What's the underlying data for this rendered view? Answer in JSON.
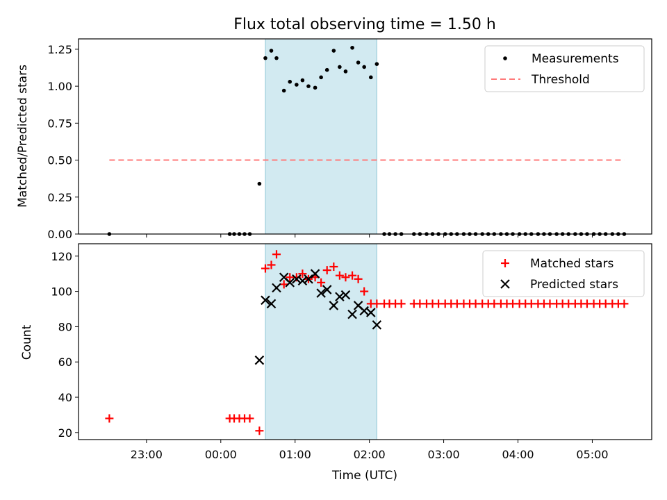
{
  "chart_data": [
    {
      "type": "scatter",
      "title": "Flux total observing time = 1.50 h",
      "xlabel": "",
      "ylabel": "Matched/Predicted stars",
      "ylim": [
        0,
        1.32
      ],
      "xlim": [
        -1.915,
        5.8
      ],
      "x_unit": "hours relative to 00:00 UTC",
      "yticks": [
        0,
        0.25,
        0.5,
        0.75,
        1.0,
        1.25
      ],
      "ytick_labels": [
        "0.00",
        "0.25",
        "0.50",
        "0.75",
        "1.00",
        "1.25"
      ],
      "shaded_span": [
        0.6,
        2.1
      ],
      "legend_position": "upper right",
      "series": [
        {
          "name": "Measurements",
          "style": "dot",
          "color": "#000000",
          "x": [
            -1.5,
            0.12,
            0.18,
            0.25,
            0.32,
            0.39,
            0.52,
            0.6,
            0.68,
            0.75,
            0.85,
            0.93,
            1.02,
            1.1,
            1.18,
            1.27,
            1.35,
            1.43,
            1.52,
            1.6,
            1.68,
            1.77,
            1.85,
            1.93,
            2.02,
            2.1,
            2.2,
            2.27,
            2.35,
            2.43,
            2.6,
            2.68,
            2.77,
            2.85,
            2.93,
            3.02,
            3.1,
            3.18,
            3.27,
            3.35,
            3.43,
            3.52,
            3.6,
            3.68,
            3.77,
            3.85,
            3.93,
            4.02,
            4.1,
            4.18,
            4.27,
            4.35,
            4.43,
            4.52,
            4.6,
            4.68,
            4.77,
            4.85,
            4.93,
            5.02,
            5.1,
            5.18,
            5.27,
            5.35,
            5.43
          ],
          "y": [
            0,
            0,
            0,
            0,
            0,
            0,
            0.34,
            1.19,
            1.24,
            1.19,
            0.97,
            1.03,
            1.01,
            1.04,
            1.0,
            0.99,
            1.06,
            1.11,
            1.24,
            1.13,
            1.1,
            1.26,
            1.16,
            1.13,
            1.06,
            1.15,
            0,
            0,
            0,
            0,
            0,
            0,
            0,
            0,
            0,
            0,
            0,
            0,
            0,
            0,
            0,
            0,
            0,
            0,
            0,
            0,
            0,
            0,
            0,
            0,
            0,
            0,
            0,
            0,
            0,
            0,
            0,
            0,
            0,
            0,
            0,
            0,
            0,
            0,
            0
          ]
        },
        {
          "name": "Threshold",
          "style": "dashed-line",
          "color": "#ff7a7a",
          "x": [
            -1.5,
            5.43
          ],
          "y": [
            0.5,
            0.5
          ]
        }
      ]
    },
    {
      "type": "scatter",
      "title": "",
      "xlabel": "Time (UTC)",
      "ylabel": "Count",
      "ylim": [
        16,
        127
      ],
      "xlim": [
        -1.915,
        5.8
      ],
      "yticks": [
        20,
        40,
        60,
        80,
        100,
        120
      ],
      "ytick_labels": [
        "20",
        "40",
        "60",
        "80",
        "100",
        "120"
      ],
      "xticks": [
        -1,
        0,
        1,
        2,
        3,
        4,
        5
      ],
      "xtick_labels": [
        "23:00",
        "00:00",
        "01:00",
        "02:00",
        "03:00",
        "04:00",
        "05:00"
      ],
      "shaded_span": [
        0.6,
        2.1
      ],
      "legend_position": "upper right",
      "series": [
        {
          "name": "Matched stars",
          "style": "plus",
          "color": "#ff0000",
          "x": [
            -1.5,
            0.12,
            0.18,
            0.25,
            0.32,
            0.39,
            0.52,
            0.6,
            0.68,
            0.75,
            0.85,
            0.93,
            1.02,
            1.1,
            1.18,
            1.27,
            1.35,
            1.43,
            1.52,
            1.6,
            1.68,
            1.77,
            1.85,
            1.93,
            2.02,
            2.1,
            2.2,
            2.27,
            2.35,
            2.43,
            2.6,
            2.68,
            2.77,
            2.85,
            2.93,
            3.02,
            3.1,
            3.18,
            3.27,
            3.35,
            3.43,
            3.52,
            3.6,
            3.68,
            3.77,
            3.85,
            3.93,
            4.02,
            4.1,
            4.18,
            4.27,
            4.35,
            4.43,
            4.52,
            4.6,
            4.68,
            4.77,
            4.85,
            4.93,
            5.02,
            5.1,
            5.18,
            5.27,
            5.35,
            5.43
          ],
          "y": [
            28,
            28,
            28,
            28,
            28,
            28,
            21,
            113,
            115,
            121,
            104,
            108,
            108,
            110,
            107,
            108,
            105,
            112,
            114,
            109,
            108,
            109,
            107,
            100,
            93,
            93,
            93,
            93,
            93,
            93,
            93,
            93,
            93,
            93,
            93,
            93,
            93,
            93,
            93,
            93,
            93,
            93,
            93,
            93,
            93,
            93,
            93,
            93,
            93,
            93,
            93,
            93,
            93,
            93,
            93,
            93,
            93,
            93,
            93,
            93,
            93,
            93,
            93,
            93,
            93
          ]
        },
        {
          "name": "Predicted stars",
          "style": "x",
          "color": "#000000",
          "x": [
            0.52,
            0.6,
            0.68,
            0.75,
            0.85,
            0.93,
            1.02,
            1.1,
            1.18,
            1.27,
            1.35,
            1.43,
            1.52,
            1.6,
            1.68,
            1.77,
            1.85,
            1.93,
            2.02,
            2.1
          ],
          "y": [
            61,
            95,
            93,
            102,
            108,
            105,
            107,
            106,
            107,
            110,
            99,
            101,
            92,
            97,
            98,
            87,
            92,
            89,
            88,
            81
          ]
        }
      ]
    }
  ]
}
